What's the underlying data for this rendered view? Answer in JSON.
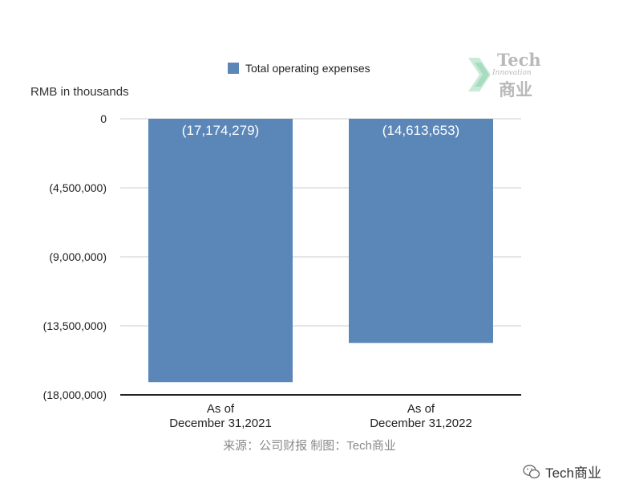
{
  "chart_data": {
    "type": "bar",
    "title": "",
    "ylabel": "RMB in thousands",
    "xlabel": "",
    "categories": [
      [
        "As of",
        "December 31,2021"
      ],
      [
        "As of",
        "December 31,2022"
      ]
    ],
    "series": [
      {
        "name": "Total operating expenses",
        "values": [
          -17174279,
          -14613653
        ],
        "labels": [
          "(17,174,279)",
          "(14,613,653)"
        ],
        "color": "#5b86b8"
      }
    ],
    "ylim": [
      -18000000,
      0
    ],
    "yticks": [
      0,
      -4500000,
      -9000000,
      -13500000,
      -18000000
    ],
    "ytick_labels": [
      "0",
      "(4,500,000)",
      "(9,000,000)",
      "(13,500,000)",
      "(18,000,000)"
    ],
    "grid": true,
    "legend_position": "top-center"
  },
  "source_note": "来源：公司财报 制图：Tech商业",
  "wechat_label": "Tech商业",
  "watermark": {
    "line1": "Tech",
    "line2": "Innovation",
    "line3": "商业"
  }
}
